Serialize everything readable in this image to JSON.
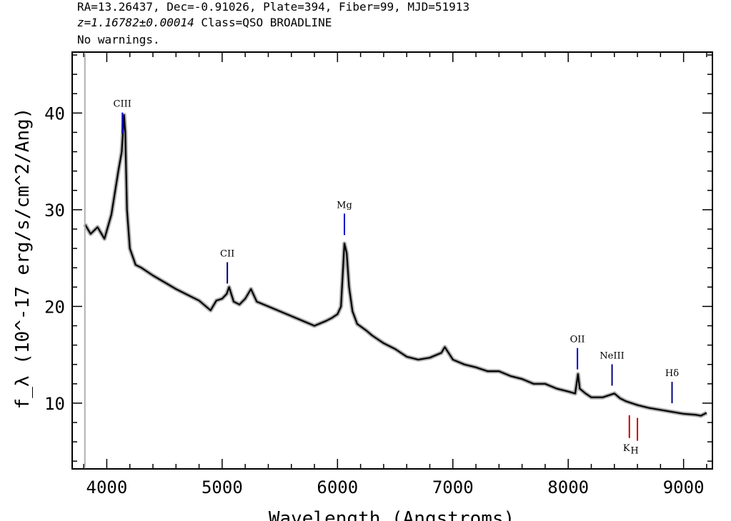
{
  "header": {
    "line1": "RA=13.26437, Dec=-0.91026, Plate=394, Fiber=99, MJD=51913",
    "redshift": "z=1.16782±0.00014",
    "class_text": "Class=QSO BROADLINE",
    "line3": "No warnings."
  },
  "chart_data": {
    "type": "line",
    "title": "",
    "xlabel": "Wavelength (Angstroms)",
    "ylabel": "f_λ (10^-17 erg/s/cm^2/Ang)",
    "xlim": [
      3700,
      9250
    ],
    "ylim": [
      3.2,
      46.3
    ],
    "x_ticks": [
      4000,
      5000,
      6000,
      7000,
      8000,
      9000
    ],
    "y_ticks": [
      10,
      20,
      30,
      40
    ],
    "grid": false,
    "series": [
      {
        "color": "#000000",
        "x": [
          3810,
          3860,
          3920,
          3980,
          4040,
          4100,
          4130,
          4150,
          4160,
          4175,
          4200,
          4250,
          4300,
          4400,
          4500,
          4600,
          4700,
          4800,
          4900,
          4950,
          5000,
          5040,
          5060,
          5100,
          5150,
          5200,
          5250,
          5300,
          5400,
          5500,
          5600,
          5700,
          5800,
          5900,
          5950,
          6000,
          6030,
          6060,
          6080,
          6100,
          6130,
          6170,
          6250,
          6300,
          6400,
          6500,
          6600,
          6700,
          6800,
          6900,
          6930,
          7000,
          7100,
          7200,
          7300,
          7400,
          7500,
          7600,
          7700,
          7800,
          7900,
          8000,
          8060,
          8085,
          8100,
          8150,
          8200,
          8300,
          8400,
          8450,
          8500,
          8600,
          8700,
          8800,
          8900,
          9000,
          9100,
          9150,
          9200
        ],
        "y": [
          28.5,
          27.5,
          28.2,
          27.0,
          29.5,
          34.0,
          36.0,
          39.8,
          38.0,
          30.0,
          26.0,
          24.3,
          24.0,
          23.2,
          22.5,
          21.8,
          21.2,
          20.6,
          19.6,
          20.6,
          20.8,
          21.3,
          22.0,
          20.5,
          20.2,
          20.8,
          21.8,
          20.5,
          20.0,
          19.5,
          19.0,
          18.5,
          18.0,
          18.5,
          18.8,
          19.2,
          20.0,
          26.5,
          25.5,
          22.0,
          19.5,
          18.2,
          17.5,
          17.0,
          16.2,
          15.6,
          14.8,
          14.5,
          14.7,
          15.2,
          15.8,
          14.5,
          14.0,
          13.7,
          13.3,
          13.3,
          12.8,
          12.5,
          12.0,
          12.0,
          11.5,
          11.2,
          11.0,
          13.0,
          11.5,
          11.0,
          10.6,
          10.6,
          11.0,
          10.5,
          10.2,
          9.8,
          9.5,
          9.3,
          9.1,
          8.9,
          8.8,
          8.7,
          9.0
        ]
      }
    ],
    "lines": [
      {
        "label": "CIII",
        "x": 4135,
        "color": "#0000cc"
      },
      {
        "label": "CII",
        "x": 5045,
        "color": "#000080"
      },
      {
        "label": "Mg",
        "x": 6060,
        "color": "#0000cc"
      },
      {
        "label": "OII",
        "x": 8080,
        "color": "#0000cc"
      },
      {
        "label": "NeIII",
        "x": 8380,
        "color": "#000080"
      },
      {
        "label": "Hδ",
        "x": 8900,
        "color": "#000080"
      },
      {
        "label": "K",
        "x": 8530,
        "color": "#cc0000"
      },
      {
        "label": "H",
        "x": 8600,
        "color": "#cc0000"
      }
    ]
  }
}
